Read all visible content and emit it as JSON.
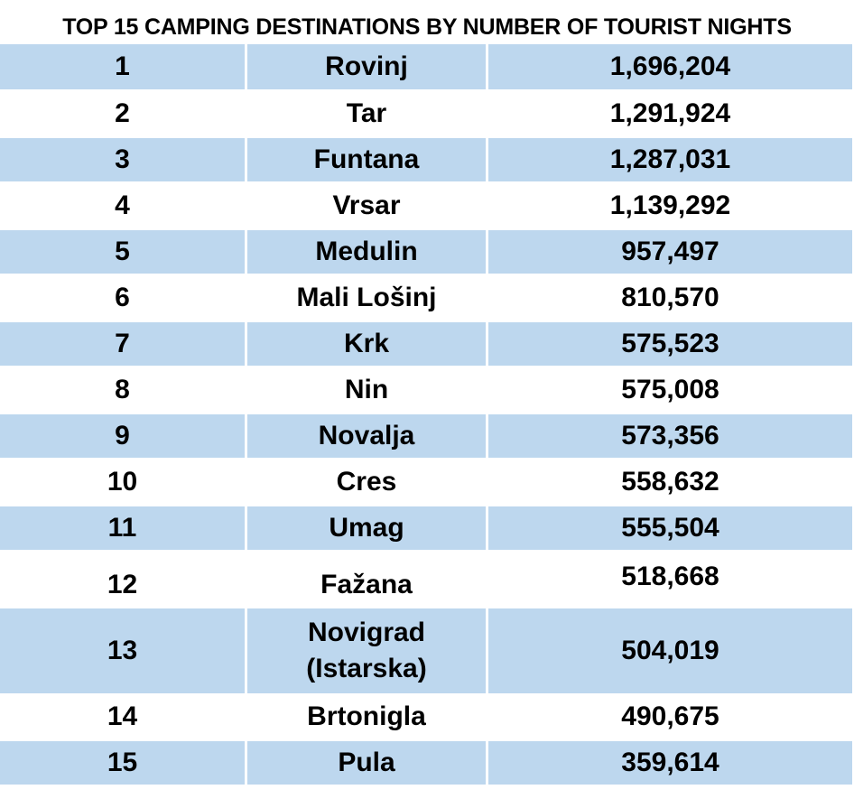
{
  "title": "TOP 15 CAMPING DESTINATIONS BY NUMBER OF TOURIST NIGHTS",
  "rows": [
    {
      "rank": "1",
      "name": "Rovinj",
      "value": "1,696,204"
    },
    {
      "rank": "2",
      "name": "Tar",
      "value": "1,291,924"
    },
    {
      "rank": "3",
      "name": "Funtana",
      "value": "1,287,031"
    },
    {
      "rank": "4",
      "name": "Vrsar",
      "value": "1,139,292"
    },
    {
      "rank": "5",
      "name": "Medulin",
      "value": "957,497"
    },
    {
      "rank": "6",
      "name": "Mali Lošinj",
      "value": "810,570"
    },
    {
      "rank": "7",
      "name": "Krk",
      "value": "575,523"
    },
    {
      "rank": "8",
      "name": "Nin",
      "value": "575,008"
    },
    {
      "rank": "9",
      "name": "Novalja",
      "value": "573,356"
    },
    {
      "rank": "10",
      "name": "Cres",
      "value": "558,632"
    },
    {
      "rank": "11",
      "name": "Umag",
      "value": "555,504"
    },
    {
      "rank": "12",
      "name": "Fažana",
      "value": "518,668"
    },
    {
      "rank": "13",
      "name": "Novigrad (Istarska)",
      "value": "504,019"
    },
    {
      "rank": "14",
      "name": "Brtonigla",
      "value": "490,675"
    },
    {
      "rank": "15",
      "name": "Pula",
      "value": "359,614"
    }
  ],
  "colors": {
    "shaded_row": "#bdd7ee",
    "plain_row": "#ffffff",
    "text": "#000000"
  }
}
